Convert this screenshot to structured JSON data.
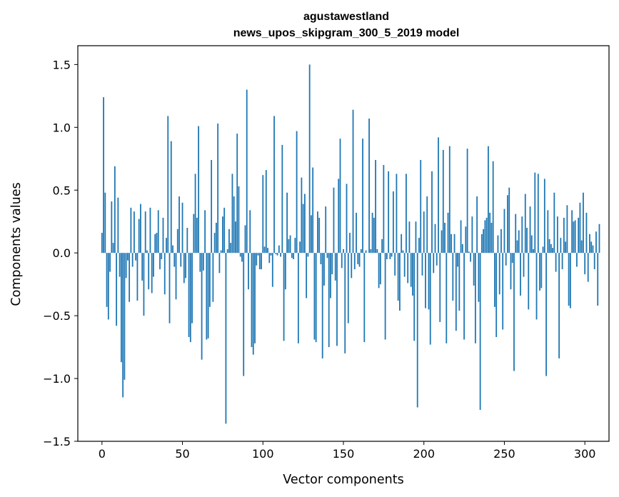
{
  "chart_data": {
    "type": "bar",
    "title_line1": "agustawestland",
    "title_line2": "news_upos_skipgram_300_5_2019 model",
    "xlabel": "Vector components",
    "ylabel": "Components values",
    "xlim": [
      -15,
      315
    ],
    "ylim": [
      -1.5,
      1.65
    ],
    "xticks": [
      0,
      50,
      100,
      150,
      200,
      250,
      300
    ],
    "xtick_labels": [
      "0",
      "50",
      "100",
      "150",
      "200",
      "250",
      "300"
    ],
    "yticks": [
      -1.5,
      -1.0,
      -0.5,
      0.0,
      0.5,
      1.0,
      1.5
    ],
    "ytick_labels": [
      "−1.5",
      "−1.0",
      "−0.5",
      "0.0",
      "0.5",
      "1.0",
      "1.5"
    ],
    "grid": false,
    "bar_color": "#1f77b4",
    "values": [
      0.16,
      1.24,
      0.48,
      -0.43,
      -0.53,
      -0.15,
      0.41,
      0.08,
      0.69,
      -0.58,
      0.44,
      -0.19,
      -0.87,
      -1.15,
      -1.01,
      -0.2,
      -0.06,
      -0.39,
      0.36,
      -0.11,
      0.33,
      -0.06,
      -0.38,
      0.27,
      0.39,
      -0.22,
      -0.5,
      0.33,
      0.02,
      -0.29,
      0.36,
      -0.32,
      -0.19,
      0.15,
      0.16,
      0.34,
      -0.13,
      -0.05,
      0.28,
      -0.33,
      0.12,
      1.09,
      -0.56,
      0.89,
      0.06,
      -0.11,
      -0.37,
      0.19,
      0.45,
      -0.11,
      0.4,
      -0.24,
      -0.2,
      0.2,
      -0.67,
      -0.71,
      -0.56,
      0.31,
      0.63,
      0.28,
      1.01,
      -0.15,
      -0.85,
      -0.14,
      0.34,
      -0.69,
      -0.68,
      -0.43,
      0.74,
      -0.39,
      0.16,
      0.24,
      1.03,
      -0.16,
      0.02,
      0.29,
      0.36,
      -1.36,
      0.03,
      0.19,
      0.08,
      0.63,
      0.45,
      0.25,
      0.95,
      0.53,
      -0.03,
      -0.07,
      -0.98,
      0.22,
      1.3,
      -0.29,
      0.34,
      -0.75,
      -0.81,
      -0.72,
      -0.1,
      -0.02,
      -0.13,
      -0.13,
      0.62,
      0.05,
      0.66,
      0.04,
      -0.08,
      -0.02,
      -0.27,
      1.09,
      -0.01,
      -0.02,
      0.06,
      -0.03,
      0.86,
      -0.7,
      -0.29,
      0.48,
      0.11,
      0.14,
      -0.04,
      -0.05,
      0.12,
      0.97,
      -0.72,
      0.09,
      0.6,
      0.39,
      0.47,
      -0.36,
      -0.03,
      1.5,
      0.3,
      0.68,
      -0.69,
      -0.71,
      0.33,
      0.28,
      -0.09,
      -0.84,
      -0.26,
      0.37,
      -0.04,
      -0.75,
      -0.36,
      -0.17,
      0.52,
      -0.22,
      -0.74,
      0.59,
      0.91,
      -0.12,
      0.03,
      -0.8,
      0.55,
      -0.56,
      0.16,
      -0.2,
      1.14,
      -0.13,
      0.32,
      -0.09,
      -0.11,
      0.03,
      0.91,
      -0.71,
      0.02,
      0.0,
      1.07,
      0.03,
      0.32,
      0.28,
      0.74,
      0.03,
      -0.28,
      -0.25,
      0.11,
      0.7,
      -0.69,
      -0.05,
      0.65,
      -0.05,
      -0.03,
      0.49,
      -0.18,
      0.63,
      -0.38,
      -0.46,
      0.15,
      0.02,
      -0.19,
      0.63,
      -0.24,
      0.25,
      -0.27,
      -0.34,
      -0.7,
      0.25,
      -1.23,
      0.12,
      0.74,
      -0.18,
      0.33,
      -0.44,
      0.45,
      -0.45,
      -0.73,
      0.65,
      -0.16,
      0.23,
      -0.1,
      0.92,
      -0.55,
      0.18,
      0.82,
      0.24,
      -0.72,
      0.32,
      0.85,
      0.15,
      -0.38,
      0.15,
      -0.62,
      -0.11,
      -0.46,
      0.26,
      0.07,
      -0.69,
      0.21,
      0.83,
      0.01,
      -0.07,
      0.29,
      -0.26,
      -0.72,
      0.45,
      -0.39,
      -1.25,
      0.15,
      0.19,
      0.26,
      0.28,
      0.85,
      0.32,
      0.24,
      0.73,
      -0.43,
      -0.67,
      0.14,
      -0.33,
      0.19,
      -0.61,
      0.35,
      -0.1,
      0.46,
      0.52,
      -0.29,
      -0.08,
      -0.94,
      0.31,
      0.1,
      0.18,
      -0.34,
      0.29,
      -0.19,
      0.47,
      0.2,
      -0.45,
      0.37,
      0.14,
      0.03,
      0.64,
      -0.53,
      0.63,
      -0.3,
      -0.28,
      0.05,
      0.59,
      -0.98,
      0.34,
      0.11,
      0.07,
      0.04,
      0.48,
      -0.15,
      0.29,
      -0.84,
      0.12,
      -0.13,
      0.28,
      0.09,
      0.38,
      -0.42,
      -0.44,
      0.34,
      0.25,
      0.26,
      -0.11,
      0.28,
      0.4,
      0.1,
      0.48,
      -0.17,
      0.32,
      -0.23,
      0.15,
      0.09,
      0.06,
      -0.13,
      0.17,
      -0.42,
      0.23
    ]
  }
}
